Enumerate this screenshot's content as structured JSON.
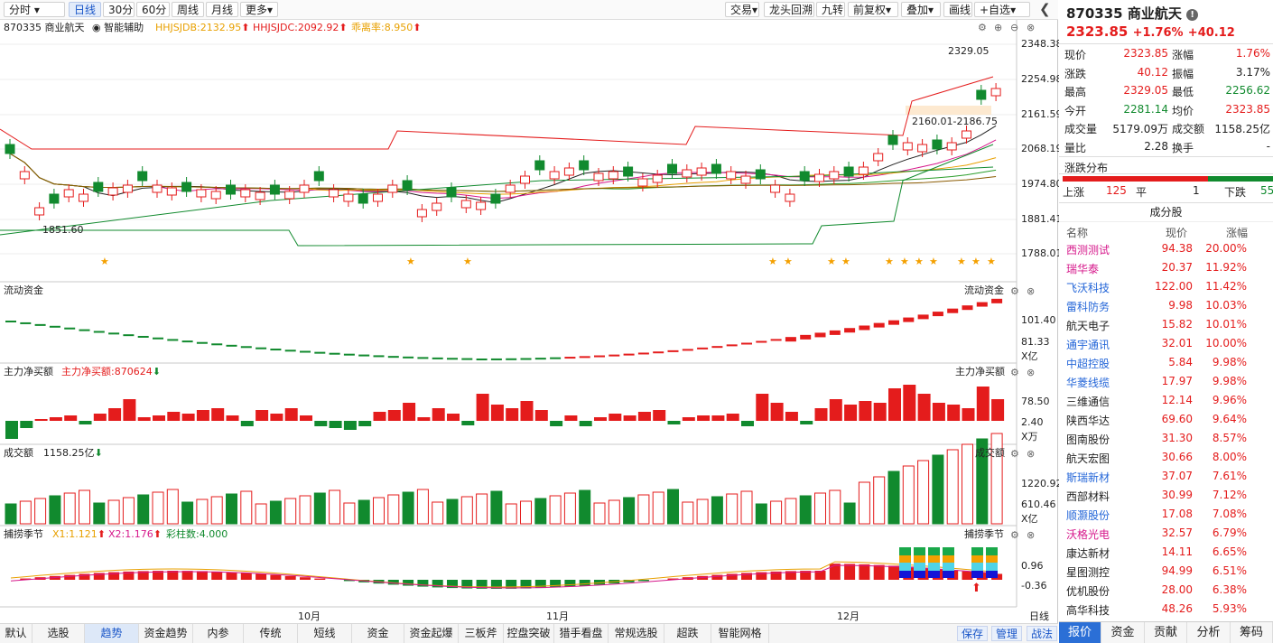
{
  "toolbar": {
    "left_tabs": [
      "分时",
      "日线",
      "30分",
      "60分",
      "周线",
      "月线",
      "更多"
    ],
    "active_tab": "日线",
    "right_buttons": [
      "交易",
      "龙头回溯",
      "九转",
      "前复权",
      "叠加",
      "画线",
      "+自选"
    ],
    "icons": [
      "back-icon"
    ]
  },
  "main_chart": {
    "code_name": "870335 商业航天",
    "assist_label": "智能辅助",
    "ind1": "HHJSJDB:2132.95",
    "ind2": "HHJSJDC:2092.92",
    "ind3": "乖离率:8.950",
    "axis": [
      "2348.38",
      "2254.98",
      "2161.59",
      "2068.19",
      "1974.80",
      "1881.41",
      "1788.01"
    ],
    "high_label": "2329.05",
    "low_label": "1851.60",
    "zone_label": "2160.01-2186.75"
  },
  "panel_liquidity": {
    "title": "流动资金",
    "right_title": "流动资金",
    "axis": [
      "101.40",
      "81.33"
    ],
    "unit": "X亿"
  },
  "panel_mainflow": {
    "title": "主力净买额",
    "value_label": "主力净买额:870624",
    "right_title": "主力净买额",
    "axis": [
      "78.50",
      "2.40"
    ],
    "unit": "X万"
  },
  "panel_volume": {
    "title": "成交额",
    "value_label": "1158.25亿",
    "right_title": "成交额",
    "axis": [
      "1220.92",
      "610.46"
    ],
    "unit": "X亿"
  },
  "panel_season": {
    "title": "捕捞季节",
    "x1": "X1:1.121",
    "x2": "X2:1.176",
    "count": "彩柱数:4.000",
    "right_title": "捕捞季节",
    "axis": [
      "0.96",
      "-0.36"
    ]
  },
  "x_axis": {
    "months": [
      "10月",
      "11月",
      "12月"
    ],
    "period": "日线"
  },
  "bottom_bar": {
    "tabs": [
      "默认",
      "选股",
      "趋势",
      "资金趋势",
      "内参",
      "传统",
      "短线",
      "资金",
      "资金起爆",
      "三板斧",
      "控盘突破",
      "猎手看盘",
      "常规选股",
      "超跌",
      "智能网格"
    ],
    "active": "趋势",
    "right": [
      "保存",
      "管理",
      "战法"
    ]
  },
  "quote": {
    "title": "870335 商业航天",
    "price": "2323.85",
    "pct": "+1.76%",
    "chg": "+40.12",
    "rows": [
      [
        "现价",
        "2323.85",
        "涨幅",
        "1.76%"
      ],
      [
        "涨跌",
        "40.12",
        "振幅",
        "3.17%"
      ],
      [
        "最高",
        "2329.05",
        "最低",
        "2256.62"
      ],
      [
        "今开",
        "2281.14",
        "均价",
        "2323.85"
      ],
      [
        "成交量",
        "5179.09万",
        "成交额",
        "1158.25亿"
      ],
      [
        "量比",
        "2.28",
        "换手",
        "-"
      ]
    ],
    "dist_title": "涨跌分布",
    "up_label": "上涨",
    "up_count": "125",
    "flat_label": "平",
    "flat_count": "1",
    "down_label": "下跌",
    "down_count": "55",
    "up_ratio": 0.69
  },
  "components": {
    "title": "成分股",
    "headers": [
      "名称",
      "现价",
      "涨幅"
    ],
    "stocks": [
      {
        "name": "西测测试",
        "price": "94.38",
        "pct": "20.00%",
        "color": "#d6188b"
      },
      {
        "name": "瑞华泰",
        "price": "20.37",
        "pct": "11.92%",
        "color": "#d6188b"
      },
      {
        "name": "飞沃科技",
        "price": "122.00",
        "pct": "11.42%",
        "color": "#2466d8"
      },
      {
        "name": "雷科防务",
        "price": "9.98",
        "pct": "10.03%",
        "color": "#2466d8"
      },
      {
        "name": "航天电子",
        "price": "15.82",
        "pct": "10.01%",
        "color": "#222222"
      },
      {
        "name": "通宇通讯",
        "price": "32.01",
        "pct": "10.00%",
        "color": "#2466d8"
      },
      {
        "name": "中超控股",
        "price": "5.84",
        "pct": "9.98%",
        "color": "#2466d8"
      },
      {
        "name": "华菱线缆",
        "price": "17.97",
        "pct": "9.98%",
        "color": "#2466d8"
      },
      {
        "name": "三维通信",
        "price": "12.14",
        "pct": "9.96%",
        "color": "#222222"
      },
      {
        "name": "陕西华达",
        "price": "69.60",
        "pct": "9.64%",
        "color": "#222222"
      },
      {
        "name": "图南股份",
        "price": "31.30",
        "pct": "8.57%",
        "color": "#222222"
      },
      {
        "name": "航天宏图",
        "price": "30.66",
        "pct": "8.00%",
        "color": "#222222"
      },
      {
        "name": "斯瑞新材",
        "price": "37.07",
        "pct": "7.61%",
        "color": "#2466d8"
      },
      {
        "name": "西部材料",
        "price": "30.99",
        "pct": "7.12%",
        "color": "#222222"
      },
      {
        "name": "顺灏股份",
        "price": "17.08",
        "pct": "7.08%",
        "color": "#2466d8"
      },
      {
        "name": "沃格光电",
        "price": "32.57",
        "pct": "6.79%",
        "color": "#d6188b"
      },
      {
        "name": "康达新材",
        "price": "14.11",
        "pct": "6.65%",
        "color": "#222222"
      },
      {
        "name": "星图测控",
        "price": "94.99",
        "pct": "6.51%",
        "color": "#222222"
      },
      {
        "name": "优机股份",
        "price": "28.00",
        "pct": "6.38%",
        "color": "#222222"
      },
      {
        "name": "高华科技",
        "price": "48.26",
        "pct": "5.93%",
        "color": "#222222"
      }
    ]
  },
  "right_tabs": {
    "items": [
      "报价",
      "资金",
      "贡献",
      "分析",
      "筹码"
    ],
    "active": "报价"
  }
}
